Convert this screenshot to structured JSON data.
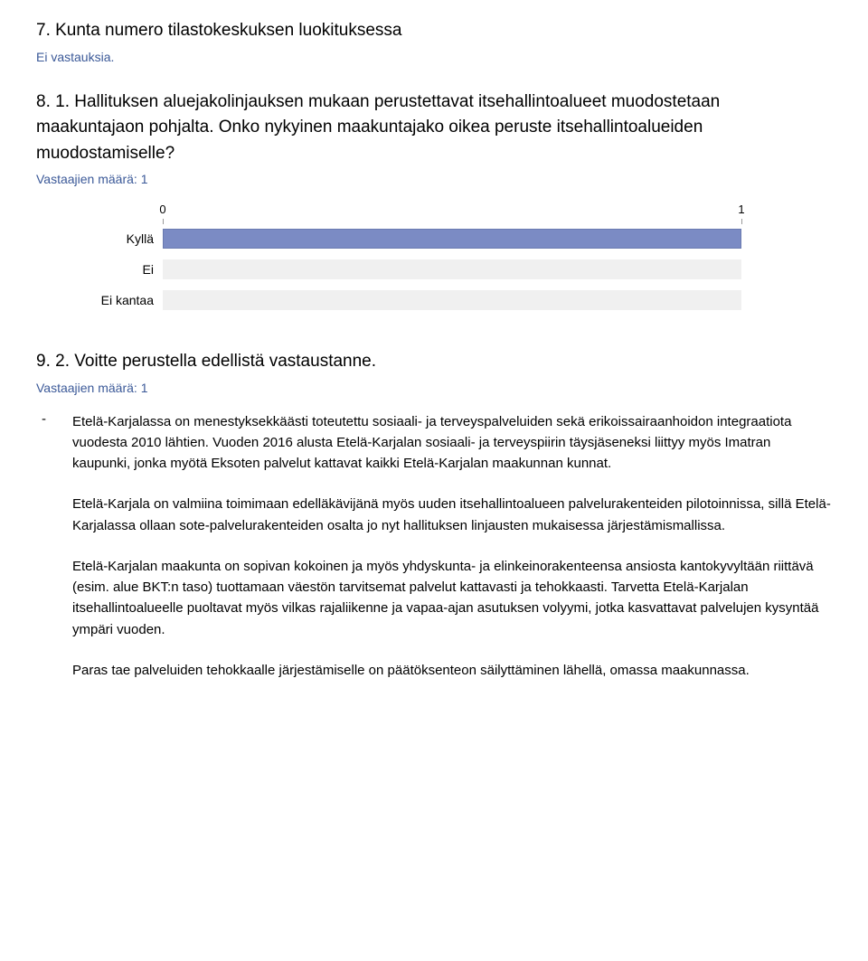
{
  "q7": {
    "title": "7. Kunta numero tilastokeskuksen luokituksessa",
    "no_answers": "Ei vastauksia."
  },
  "q8": {
    "title": "8. 1. Hallituksen aluejakolinjauksen mukaan perustettavat itsehallintoalueet muodostetaan maakuntajaon pohjalta. Onko nykyinen maakuntajako oikea peruste itsehallintoalueiden muodostamiselle?",
    "resp_label": "Vastaajien määrä: 1",
    "axis_min": "0",
    "axis_max": "1",
    "options": [
      {
        "label": "Kyllä",
        "value": 1,
        "max": 1
      },
      {
        "label": "Ei",
        "value": 0,
        "max": 1
      },
      {
        "label": "Ei kantaa",
        "value": 0,
        "max": 1
      }
    ],
    "colors": {
      "bar_fill": "#7b8bc4",
      "bar_border": "#6a7ab0",
      "track": "#f0f0f0",
      "link": "#3b5998"
    }
  },
  "q9": {
    "title": "9. 2. Voitte perustella edellistä vastaustanne.",
    "resp_label": "Vastaajien määrä: 1",
    "dash": "-",
    "paragraphs": [
      "Etelä-Karjalassa on menestyksekkäästi toteutettu sosiaali- ja terveyspalveluiden sekä erikoissairaanhoidon integraatiota vuodesta 2010 lähtien. Vuoden 2016 alusta Etelä-Karjalan sosiaali- ja terveyspiirin täysjäseneksi liittyy myös Imatran kaupunki, jonka myötä Eksoten palvelut kattavat kaikki Etelä-Karjalan maakunnan kunnat.",
      "Etelä-Karjala on valmiina toimimaan edelläkävijänä myös uuden itsehallintoalueen palvelurakenteiden pilotoinnissa, sillä Etelä-Karjalassa ollaan sote-palvelurakenteiden osalta jo nyt hallituksen linjausten mukaisessa järjestämismallissa.",
      "Etelä-Karjalan maakunta on sopivan kokoinen ja myös yhdyskunta- ja elinkeinorakenteensa ansiosta kantokyvyltään riittävä (esim. alue BKT:n taso) tuottamaan väestön tarvitsemat palvelut kattavasti ja tehokkaasti. Tarvetta Etelä-Karjalan itsehallintoalueelle puoltavat myös vilkas rajaliikenne ja vapaa-ajan asutuksen volyymi, jotka kasvattavat palvelujen kysyntää ympäri vuoden.",
      "Paras tae palveluiden tehokkaalle järjestämiselle on päätöksenteon säilyttäminen lähellä, omassa maakunnassa."
    ]
  }
}
